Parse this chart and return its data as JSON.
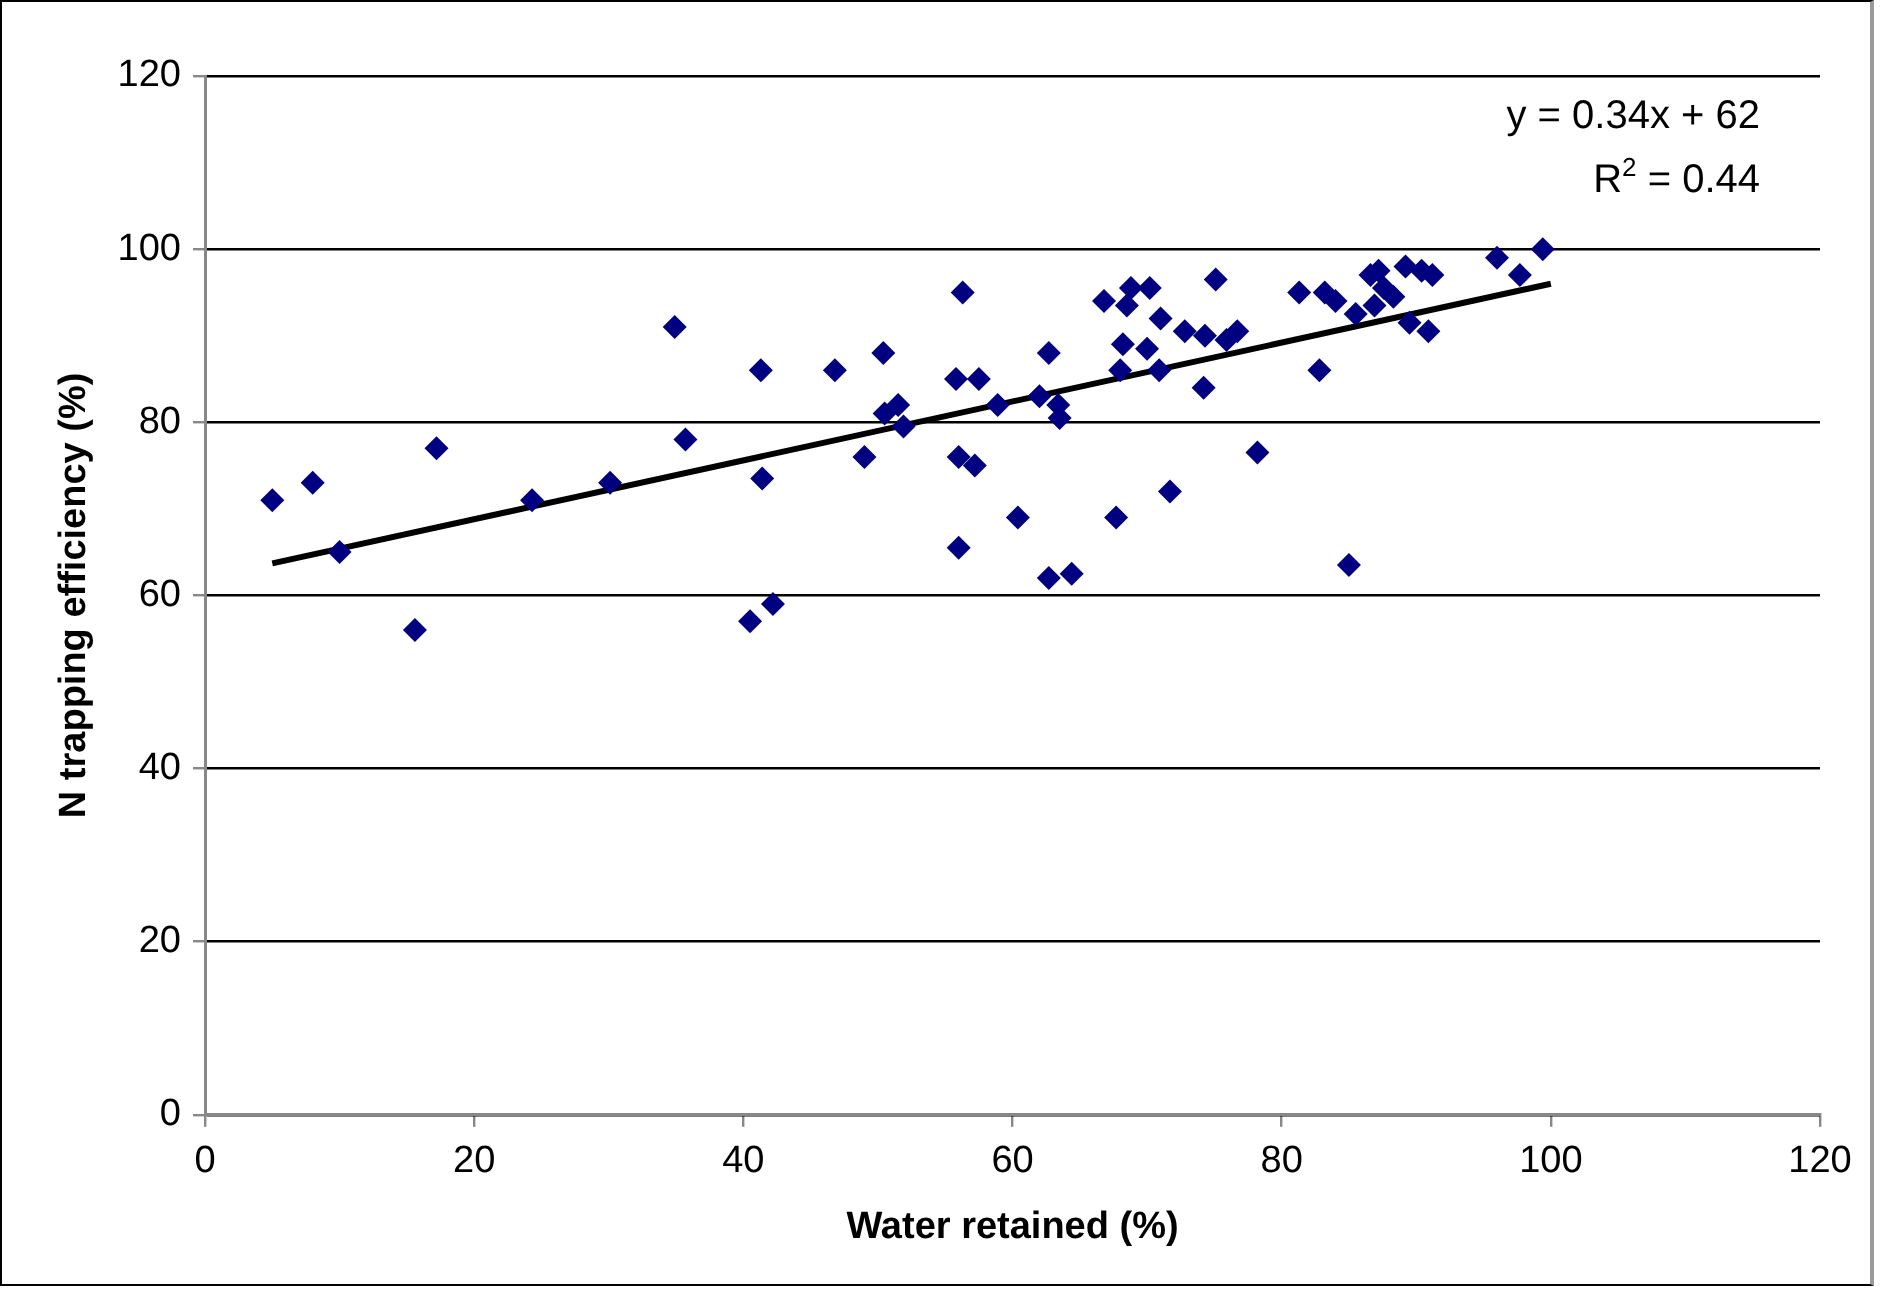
{
  "chart_data": {
    "type": "scatter",
    "xlabel": "Water retained (%)",
    "ylabel": "N trapping efficiency (%)",
    "xlim": [
      0,
      120
    ],
    "ylim": [
      0,
      120
    ],
    "xticks": [
      0,
      20,
      40,
      60,
      80,
      100,
      120
    ],
    "yticks": [
      0,
      20,
      40,
      60,
      80,
      100,
      120
    ],
    "grid": "y",
    "legend": false,
    "marker": "diamond",
    "annotations": [
      "y = 0.34x + 62",
      "R$^{2}$ = 0.44"
    ],
    "series": [
      {
        "color": "#000080",
        "x": [
          5,
          8,
          10,
          15.6,
          17.2,
          24.3,
          30.1,
          34.9,
          35.7,
          40.5,
          41.3,
          41.4,
          42.2,
          46.8,
          49,
          50.4,
          50.5,
          51.5,
          51.9,
          55.8,
          56.3,
          56,
          56,
          57.5,
          57.2,
          58.9,
          60.4,
          62,
          62.7,
          62.7,
          63.4,
          63.5,
          64.4,
          66.8,
          68,
          68.2,
          67.7,
          68.5,
          68.8,
          70.2,
          70,
          70.9,
          71,
          71.7,
          72.8,
          74.3,
          74.2,
          75.1,
          75.9,
          76.7,
          78.2,
          81.3,
          82.8,
          83.2,
          84,
          85,
          85.5,
          86.6,
          87.2,
          86.9,
          87.6,
          88.3,
          89.2,
          89.5,
          90.4,
          90.9,
          91.2,
          96,
          97.7,
          99.4
        ],
        "values": [
          71,
          73,
          65,
          56,
          77,
          71,
          73,
          91,
          78,
          57,
          86,
          73.5,
          59,
          86,
          76,
          88,
          81,
          82,
          79.5,
          85,
          95,
          76,
          65.5,
          85,
          75,
          82,
          69,
          83,
          88,
          62,
          82,
          80.5,
          62.5,
          94,
          86,
          89,
          69,
          93.5,
          95.5,
          95.5,
          88.5,
          86,
          92,
          72,
          90.5,
          90,
          84,
          96.5,
          89.5,
          90.5,
          76.5,
          95,
          86,
          95,
          94,
          63.5,
          92.5,
          97,
          97.5,
          93.5,
          95.5,
          94.5,
          98,
          91.5,
          97.5,
          90.5,
          97,
          99,
          97,
          100
        ]
      },
      {
        "type": "line",
        "marker": "none",
        "color": "#000000",
        "x": [
          5,
          100
        ],
        "values": [
          63.7,
          96
        ]
      }
    ]
  }
}
